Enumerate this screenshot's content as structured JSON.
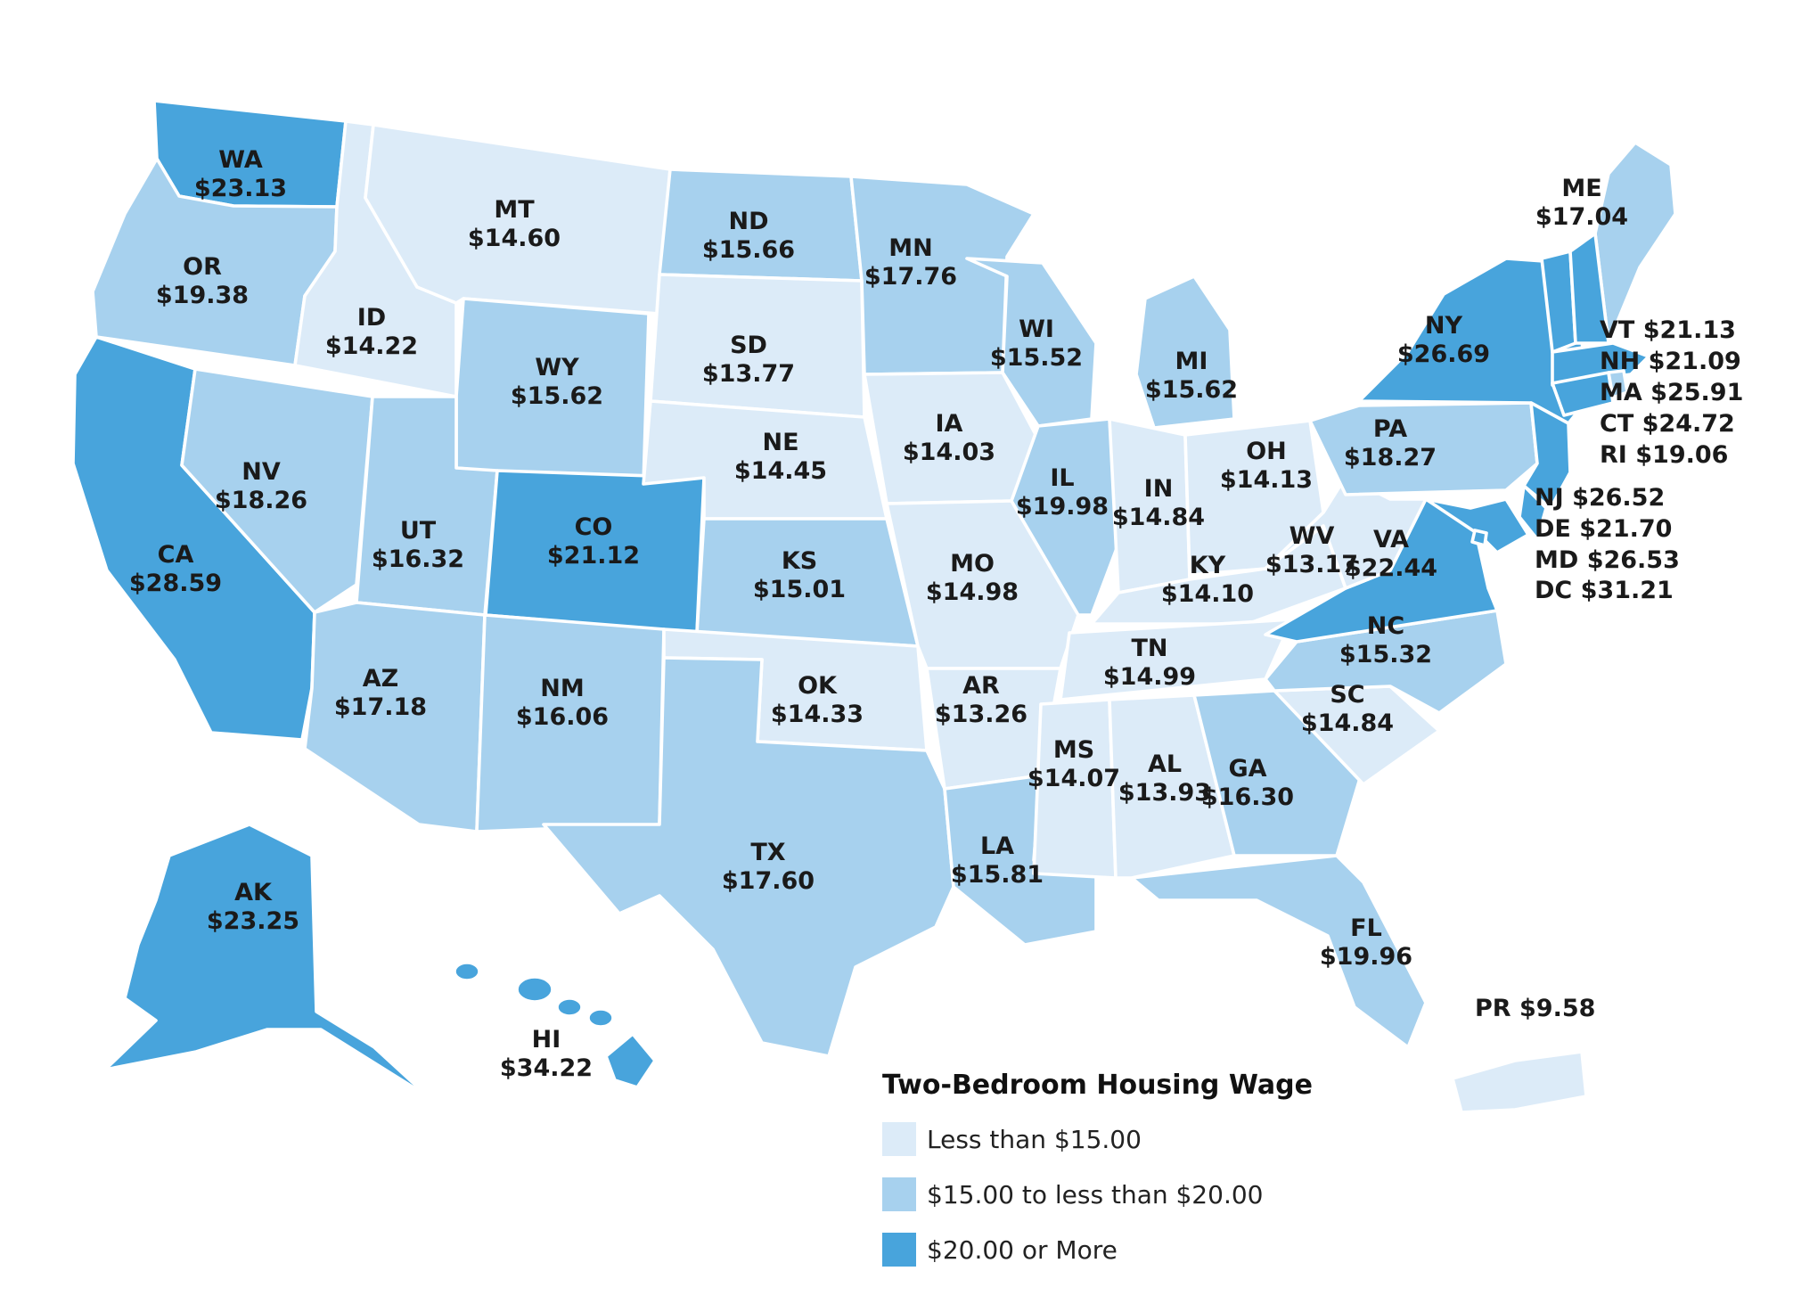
{
  "colors": {
    "low": "#dcebf8",
    "mid": "#a7d1ee",
    "high": "#48a4dc",
    "border": "#ffffff",
    "text": "#1a1a1a"
  },
  "legend": {
    "title": "Two-Bedroom Housing Wage",
    "items": [
      {
        "tier": "low",
        "label": "Less than $15.00"
      },
      {
        "tier": "mid",
        "label": "$15.00 to less than $20.00"
      },
      {
        "tier": "high",
        "label": "$20.00 or More"
      }
    ]
  },
  "states": [
    {
      "abbr": "WA",
      "wage": "$23.13",
      "tier": "high"
    },
    {
      "abbr": "OR",
      "wage": "$19.38",
      "tier": "mid"
    },
    {
      "abbr": "CA",
      "wage": "$28.59",
      "tier": "high"
    },
    {
      "abbr": "ID",
      "wage": "$14.22",
      "tier": "low"
    },
    {
      "abbr": "NV",
      "wage": "$18.26",
      "tier": "mid"
    },
    {
      "abbr": "MT",
      "wage": "$14.60",
      "tier": "low"
    },
    {
      "abbr": "WY",
      "wage": "$15.62",
      "tier": "mid"
    },
    {
      "abbr": "UT",
      "wage": "$16.32",
      "tier": "mid"
    },
    {
      "abbr": "AZ",
      "wage": "$17.18",
      "tier": "mid"
    },
    {
      "abbr": "CO",
      "wage": "$21.12",
      "tier": "high"
    },
    {
      "abbr": "NM",
      "wage": "$16.06",
      "tier": "mid"
    },
    {
      "abbr": "ND",
      "wage": "$15.66",
      "tier": "mid"
    },
    {
      "abbr": "SD",
      "wage": "$13.77",
      "tier": "low"
    },
    {
      "abbr": "NE",
      "wage": "$14.45",
      "tier": "low"
    },
    {
      "abbr": "KS",
      "wage": "$15.01",
      "tier": "mid"
    },
    {
      "abbr": "OK",
      "wage": "$14.33",
      "tier": "low"
    },
    {
      "abbr": "TX",
      "wage": "$17.60",
      "tier": "mid"
    },
    {
      "abbr": "MN",
      "wage": "$17.76",
      "tier": "mid"
    },
    {
      "abbr": "IA",
      "wage": "$14.03",
      "tier": "low"
    },
    {
      "abbr": "MO",
      "wage": "$14.98",
      "tier": "low"
    },
    {
      "abbr": "AR",
      "wage": "$13.26",
      "tier": "low"
    },
    {
      "abbr": "LA",
      "wage": "$15.81",
      "tier": "mid"
    },
    {
      "abbr": "WI",
      "wage": "$15.52",
      "tier": "mid"
    },
    {
      "abbr": "IL",
      "wage": "$19.98",
      "tier": "mid"
    },
    {
      "abbr": "MI",
      "wage": "$15.62",
      "tier": "mid"
    },
    {
      "abbr": "IN",
      "wage": "$14.84",
      "tier": "low"
    },
    {
      "abbr": "OH",
      "wage": "$14.13",
      "tier": "low"
    },
    {
      "abbr": "KY",
      "wage": "$14.10",
      "tier": "low"
    },
    {
      "abbr": "TN",
      "wage": "$14.99",
      "tier": "low"
    },
    {
      "abbr": "MS",
      "wage": "$14.07",
      "tier": "low"
    },
    {
      "abbr": "AL",
      "wage": "$13.93",
      "tier": "low"
    },
    {
      "abbr": "GA",
      "wage": "$16.30",
      "tier": "mid"
    },
    {
      "abbr": "FL",
      "wage": "$19.96",
      "tier": "mid"
    },
    {
      "abbr": "SC",
      "wage": "$14.84",
      "tier": "low"
    },
    {
      "abbr": "NC",
      "wage": "$15.32",
      "tier": "mid"
    },
    {
      "abbr": "VA",
      "wage": "$22.44",
      "tier": "high"
    },
    {
      "abbr": "WV",
      "wage": "$13.17",
      "tier": "low"
    },
    {
      "abbr": "PA",
      "wage": "$18.27",
      "tier": "mid"
    },
    {
      "abbr": "NY",
      "wage": "$26.69",
      "tier": "high"
    },
    {
      "abbr": "ME",
      "wage": "$17.04",
      "tier": "mid"
    },
    {
      "abbr": "AK",
      "wage": "$23.25",
      "tier": "high"
    },
    {
      "abbr": "HI",
      "wage": "$34.22",
      "tier": "high"
    },
    {
      "abbr": "PR",
      "wage": "$9.58",
      "tier": "low"
    },
    {
      "abbr": "VT",
      "wage": "$21.13",
      "tier": "high"
    },
    {
      "abbr": "NH",
      "wage": "$21.09",
      "tier": "high"
    },
    {
      "abbr": "MA",
      "wage": "$25.91",
      "tier": "high"
    },
    {
      "abbr": "CT",
      "wage": "$24.72",
      "tier": "high"
    },
    {
      "abbr": "RI",
      "wage": "$19.06",
      "tier": "mid"
    },
    {
      "abbr": "NJ",
      "wage": "$26.52",
      "tier": "high"
    },
    {
      "abbr": "DE",
      "wage": "$21.70",
      "tier": "high"
    },
    {
      "abbr": "MD",
      "wage": "$26.53",
      "tier": "high"
    },
    {
      "abbr": "DC",
      "wage": "$31.21",
      "tier": "high"
    }
  ]
}
